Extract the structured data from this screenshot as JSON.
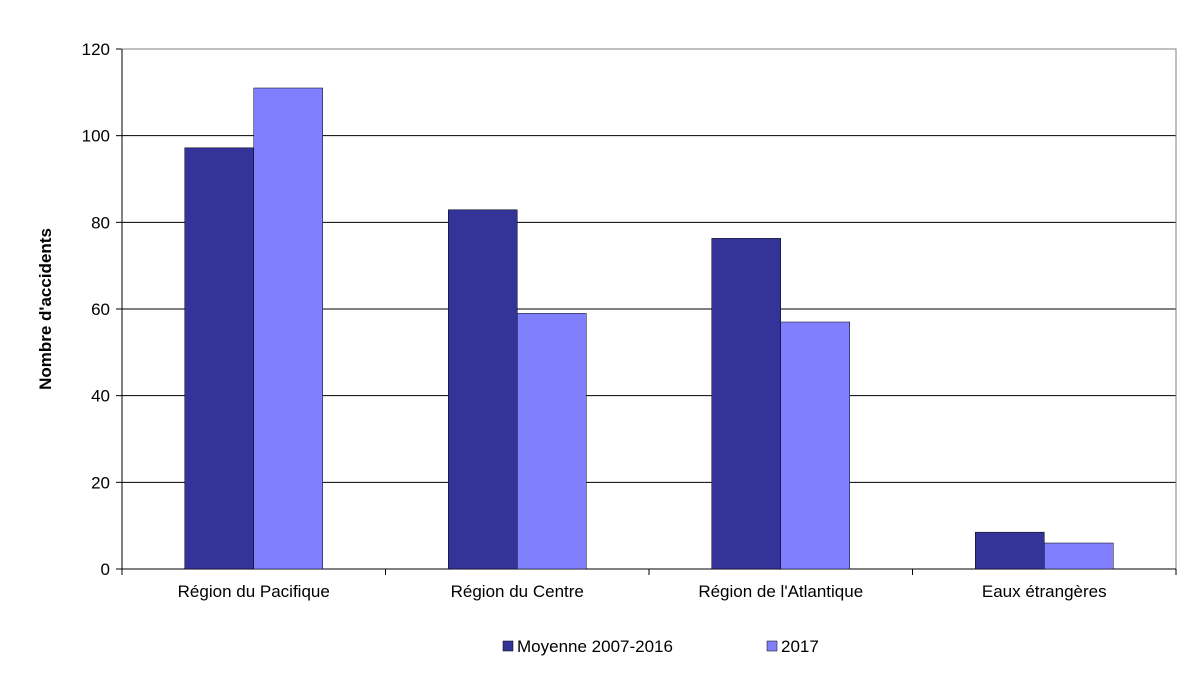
{
  "chart_data": {
    "type": "bar",
    "title": "",
    "xlabel": "",
    "ylabel": "Nombre d'accidents",
    "categories": [
      "Région du Pacifique",
      "Région du Centre",
      "Région de l'Atlantique",
      "Eaux étrangères"
    ],
    "series": [
      {
        "name": "Moyenne 2007-2016",
        "values": [
          97.2,
          82.9,
          76.3,
          8.5
        ],
        "color": "#333399"
      },
      {
        "name": "2017",
        "values": [
          111,
          59,
          57,
          6
        ],
        "color": "#8080ff"
      }
    ],
    "ylim": [
      0,
      120
    ],
    "yticks": [
      0,
      20,
      40,
      60,
      80,
      100,
      120
    ],
    "grid": true,
    "legend_position": "bottom"
  }
}
